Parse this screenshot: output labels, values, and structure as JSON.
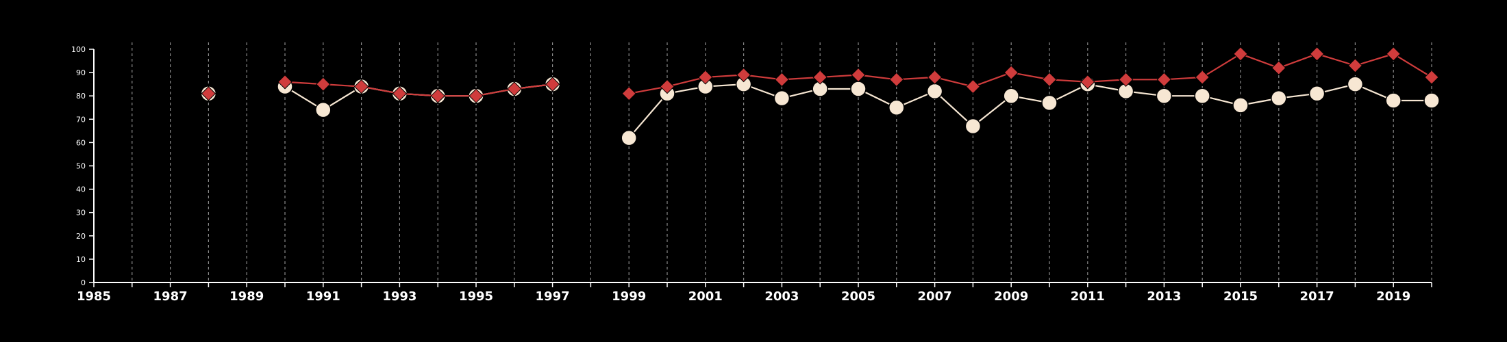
{
  "chart_data": {
    "type": "line",
    "title": "",
    "xlabel": "",
    "ylabel": "",
    "xlim": [
      1985,
      2020
    ],
    "ylim": [
      0,
      100
    ],
    "grid": "vertical dashed lines at each year",
    "legend": "none",
    "x_tick_labels": [
      "1985",
      "1987",
      "1989",
      "1991",
      "1993",
      "1995",
      "1997",
      "1999",
      "2001",
      "2003",
      "2005",
      "2007",
      "2009",
      "2011",
      "2013",
      "2015",
      "2017",
      "2019"
    ],
    "y_tick_labels": [
      "0",
      "10",
      "20",
      "30",
      "40",
      "50",
      "60",
      "70",
      "80",
      "90",
      "100"
    ],
    "x": [
      1985,
      1986,
      1987,
      1988,
      1989,
      1990,
      1991,
      1992,
      1993,
      1994,
      1995,
      1996,
      1997,
      1998,
      1999,
      2000,
      2001,
      2002,
      2003,
      2004,
      2005,
      2006,
      2007,
      2008,
      2009,
      2010,
      2011,
      2012,
      2013,
      2014,
      2015,
      2016,
      2017,
      2018,
      2019,
      2020
    ],
    "series": [
      {
        "color": "#f7e7d3",
        "marker": "circle",
        "values": [
          null,
          null,
          null,
          81,
          null,
          84,
          74,
          84,
          81,
          80,
          80,
          83,
          85,
          null,
          62,
          81,
          84,
          85,
          79,
          83,
          83,
          75,
          82,
          67,
          80,
          77,
          85,
          82,
          80,
          80,
          76,
          79,
          81,
          85,
          78,
          78
        ]
      },
      {
        "color": "#d03c3c",
        "marker": "diamond",
        "values": [
          null,
          null,
          null,
          81,
          null,
          86,
          85,
          84,
          81,
          80,
          80,
          83,
          85,
          null,
          81,
          84,
          88,
          89,
          87,
          88,
          89,
          87,
          88,
          84,
          90,
          87,
          86,
          87,
          87,
          88,
          98,
          92,
          98,
          93,
          98,
          88
        ]
      }
    ]
  }
}
